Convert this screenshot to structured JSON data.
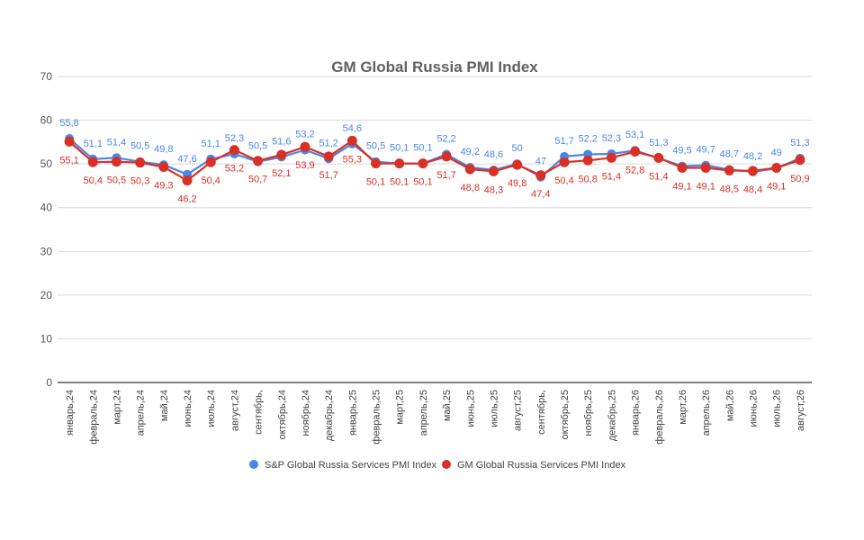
{
  "chart_data": {
    "type": "line",
    "title": "GM Global Russia PMI Index",
    "ylim": [
      0,
      70
    ],
    "yticks": [
      0,
      10,
      20,
      30,
      40,
      50,
      60,
      70
    ],
    "grid": true,
    "legend_position": "bottom",
    "categories": [
      "январь,24",
      "февраль,24",
      "март,24",
      "апрель,24",
      "май,24",
      "июнь,24",
      "июль,24",
      "август,24",
      "сентябрь,",
      "октябрь,24",
      "ноябрь,24",
      "декабрь,24",
      "январь,25",
      "февраль,25",
      "март,25",
      "апрель,25",
      "май,25",
      "июнь,25",
      "июль,25",
      "август,25",
      "сентябрь,",
      "октябрь,25",
      "ноябрь,25",
      "декабрь,25",
      "январь,26",
      "февраль,26",
      "март,26",
      "апрель,26",
      "май,26",
      "июнь,26",
      "июль,26",
      "август,26"
    ],
    "series": [
      {
        "name": "S&P Global Russia Services PMI Index",
        "color": "#4a86e8",
        "label_position": "above",
        "values": [
          55.8,
          51.1,
          51.4,
          50.5,
          49.8,
          47.6,
          51.1,
          52.3,
          50.5,
          51.6,
          53.2,
          51.2,
          54.6,
          50.5,
          50.1,
          50.1,
          52.2,
          49.2,
          48.6,
          50,
          47,
          51.7,
          52.2,
          52.3,
          53.1,
          51.3,
          49.5,
          49.7,
          48.7,
          48.2,
          49,
          51.3
        ]
      },
      {
        "name": "GM Global Russia Services PMI Index",
        "color": "#d93025",
        "label_position": "below",
        "values": [
          55.1,
          50.4,
          50.5,
          50.3,
          49.3,
          46.2,
          50.4,
          53.2,
          50.7,
          52.1,
          53.9,
          51.7,
          55.3,
          50.1,
          50.1,
          50.1,
          51.7,
          48.8,
          48.3,
          49.8,
          47.4,
          50.4,
          50.8,
          51.4,
          52.8,
          51.4,
          49.1,
          49.1,
          48.5,
          48.4,
          49.1,
          50.9
        ]
      }
    ]
  }
}
